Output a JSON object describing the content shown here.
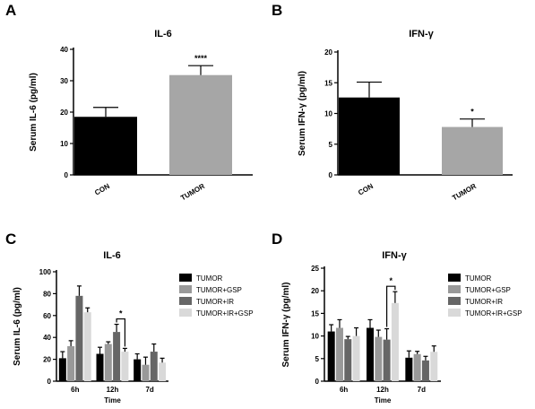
{
  "panel_labels": [
    "A",
    "B",
    "C",
    "D"
  ],
  "chart_data": [
    {
      "type": "bar",
      "panel": "A",
      "title": "IL-6",
      "ylabel": "Serum IL-6 (pg/ml)",
      "xlabel": "",
      "categories": [
        "CON",
        "TUMOR"
      ],
      "values": [
        18.5,
        31.8
      ],
      "errors": [
        3.0,
        3.0
      ],
      "bar_colors": [
        "#000000",
        "#a6a6a6"
      ],
      "annotations": [
        "",
        "****"
      ],
      "ylim": [
        0,
        40
      ],
      "yticks": [
        0,
        10,
        20,
        30,
        40
      ],
      "grid": false
    },
    {
      "type": "bar",
      "panel": "B",
      "title": "IFN-γ",
      "ylabel": "Serum IFN-γ (pg/ml)",
      "xlabel": "",
      "categories": [
        "CON",
        "TUMOR"
      ],
      "values": [
        12.6,
        7.8
      ],
      "errors": [
        2.5,
        1.3
      ],
      "bar_colors": [
        "#000000",
        "#a6a6a6"
      ],
      "annotations": [
        "",
        "*"
      ],
      "ylim": [
        0,
        20
      ],
      "yticks": [
        0,
        5,
        10,
        15,
        20
      ],
      "grid": false
    },
    {
      "type": "bar",
      "panel": "C",
      "title": "IL-6",
      "ylabel": "Serum IL-6 (pg/ml)",
      "xlabel": "Time",
      "categories": [
        "6h",
        "12h",
        "7d"
      ],
      "ylim": [
        0,
        100
      ],
      "yticks": [
        0,
        20,
        40,
        60,
        80,
        100
      ],
      "grid": false,
      "legend": "right",
      "series": [
        {
          "name": "TUMOR",
          "color": "#000000",
          "values": [
            21,
            25,
            20
          ],
          "errors": [
            6,
            6,
            5
          ]
        },
        {
          "name": "TUMOR+GSP",
          "color": "#999999",
          "values": [
            32,
            34,
            15
          ],
          "errors": [
            5,
            2,
            7
          ]
        },
        {
          "name": "TUMOR+IR",
          "color": "#666666",
          "values": [
            78,
            45,
            27
          ],
          "errors": [
            9,
            7,
            7
          ]
        },
        {
          "name": "TUMOR+IR+GSP",
          "color": "#d9d9d9",
          "values": [
            63,
            27,
            17
          ],
          "errors": [
            4,
            3,
            4
          ]
        }
      ],
      "significance": {
        "category": "12h",
        "from_series": 2,
        "to_series": 3,
        "label": "*"
      }
    },
    {
      "type": "bar",
      "panel": "D",
      "title": "IFN-γ",
      "ylabel": "Serum IFN-γ (pg/ml)",
      "xlabel": "Time",
      "categories": [
        "6h",
        "12h",
        "7d"
      ],
      "ylim": [
        0,
        25
      ],
      "yticks": [
        0,
        5,
        10,
        15,
        20,
        25
      ],
      "grid": false,
      "legend": "right",
      "series": [
        {
          "name": "TUMOR",
          "color": "#000000",
          "values": [
            11,
            11.8,
            5.2
          ],
          "errors": [
            1.5,
            1.8,
            1.5
          ]
        },
        {
          "name": "TUMOR+GSP",
          "color": "#999999",
          "values": [
            11.8,
            9.8,
            6
          ],
          "errors": [
            1.8,
            1.5,
            0.6
          ]
        },
        {
          "name": "TUMOR+IR",
          "color": "#666666",
          "values": [
            9.3,
            9.2,
            4.6
          ],
          "errors": [
            0.6,
            2.4,
            0.9
          ]
        },
        {
          "name": "TUMOR+IR+GSP",
          "color": "#d9d9d9",
          "values": [
            10,
            17.3,
            6.5
          ],
          "errors": [
            1.8,
            2.5,
            1.3
          ]
        }
      ],
      "significance": {
        "category": "12h",
        "from_series": 2,
        "to_series": 3,
        "label": "*"
      }
    }
  ]
}
